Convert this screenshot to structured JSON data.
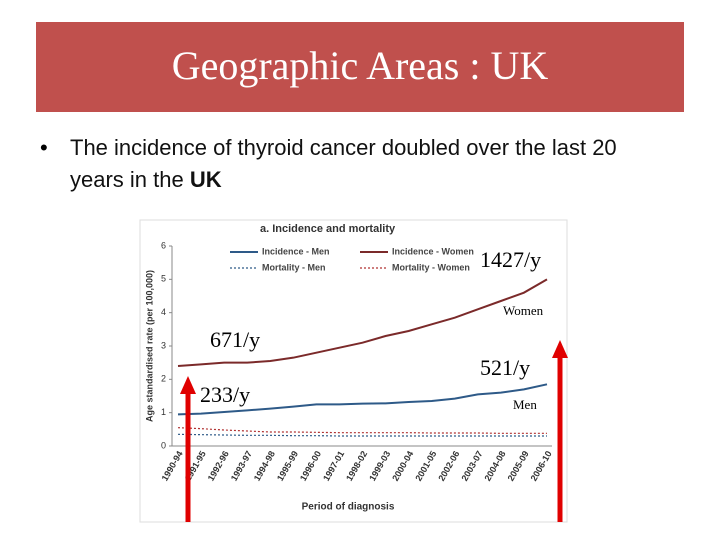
{
  "header": {
    "title": "Geographic Areas : UK"
  },
  "bullet": {
    "text": "The incidence of thyroid cancer doubled over the last 20 years in the",
    "bold": "UK"
  },
  "chart_data": {
    "type": "line",
    "title": "a. Incidence and mortality",
    "y_label": "Age standardised rate (per 100,000)",
    "x_label": "Period of diagnosis",
    "categories": [
      "1990-94",
      "1991-95",
      "1992-96",
      "1993-97",
      "1994-98",
      "1995-99",
      "1996-00",
      "1997-01",
      "1998-02",
      "1999-03",
      "2000-04",
      "2001-05",
      "2002-06",
      "2003-07",
      "2004-08",
      "2005-09",
      "2006-10"
    ],
    "ylim": [
      0,
      6
    ],
    "yticks": [
      0,
      1,
      2,
      3,
      4,
      5,
      6
    ],
    "series": [
      {
        "name": "Incidence - Men",
        "color": "#2e5a88",
        "dash": false,
        "values": [
          0.95,
          0.97,
          1.02,
          1.07,
          1.12,
          1.18,
          1.25,
          1.25,
          1.27,
          1.28,
          1.32,
          1.35,
          1.42,
          1.55,
          1.6,
          1.7,
          1.85
        ]
      },
      {
        "name": "Incidence - Women",
        "color": "#7b2a2a",
        "dash": false,
        "values": [
          2.4,
          2.45,
          2.5,
          2.5,
          2.55,
          2.65,
          2.8,
          2.95,
          3.1,
          3.3,
          3.45,
          3.65,
          3.85,
          4.1,
          4.35,
          4.6,
          5.0
        ]
      },
      {
        "name": "Mortality - Men",
        "color": "#2e5a88",
        "dash": true,
        "values": [
          0.35,
          0.34,
          0.33,
          0.32,
          0.32,
          0.31,
          0.31,
          0.3,
          0.3,
          0.3,
          0.3,
          0.3,
          0.3,
          0.3,
          0.3,
          0.3,
          0.3
        ]
      },
      {
        "name": "Mortality - Women",
        "color": "#b03030",
        "dash": true,
        "values": [
          0.55,
          0.52,
          0.48,
          0.45,
          0.42,
          0.42,
          0.41,
          0.4,
          0.4,
          0.4,
          0.4,
          0.39,
          0.39,
          0.39,
          0.38,
          0.38,
          0.38
        ]
      }
    ],
    "annotations": [
      "1427/y",
      "Women",
      "671/y",
      "521/y",
      "233/y",
      "Men"
    ]
  }
}
